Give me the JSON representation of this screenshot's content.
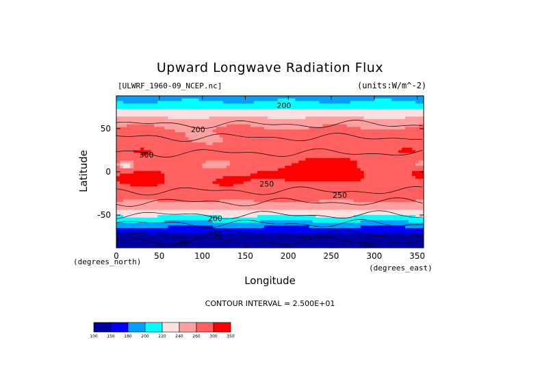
{
  "chart_data": {
    "type": "heatmap",
    "title": "Upward Longwave Radiation Flux",
    "dataset": "[ULWRF_1960-09_NCEP.nc]",
    "units": "(units:W/m^-2)",
    "xlabel": "Longitude",
    "ylabel": "Latitude",
    "x_unit_label": "(degrees_east)",
    "y_unit_label": "(degrees_north)",
    "xlim": [
      0,
      357.5
    ],
    "ylim": [
      -88,
      88
    ],
    "x_ticks": [
      "0",
      "50",
      "100",
      "150",
      "200",
      "250",
      "300",
      "350"
    ],
    "x_tick_values": [
      0,
      50,
      100,
      150,
      200,
      250,
      300,
      350
    ],
    "y_ticks": [
      "50",
      "0",
      "-50"
    ],
    "y_tick_values": [
      50,
      0,
      -50
    ],
    "contour_interval": "CONTOUR INTERVAL = 2.500E+01",
    "contour_labels": [
      {
        "text": "200",
        "x": 195,
        "y": 77
      },
      {
        "text": "200",
        "x": 95,
        "y": 49
      },
      {
        "text": "300",
        "x": 35,
        "y": 20
      },
      {
        "text": "250",
        "x": 175,
        "y": -14
      },
      {
        "text": "250",
        "x": 260,
        "y": -27
      },
      {
        "text": "200",
        "x": 115,
        "y": -54
      },
      {
        "text": "150",
        "x": 115,
        "y": -72
      },
      {
        "text": "100",
        "x": 75,
        "y": -82
      },
      {
        "text": "150",
        "x": 290,
        "y": -85
      }
    ],
    "colorbar": {
      "levels": [
        "100",
        "150",
        "180",
        "200",
        "220",
        "240",
        "260",
        "300",
        "350"
      ],
      "colors": [
        "#0000a0",
        "#0000ff",
        "#00a0ff",
        "#00ffff",
        "#ffe0e0",
        "#ffa0a0",
        "#ff6060",
        "#ff0000"
      ]
    },
    "band_colors": {
      "b1": "#0000a0",
      "b2": "#0000ff",
      "b3": "#00a0ff",
      "b4": "#00ffff",
      "b5": "#ffe0e0",
      "b6": "#ffa0a0",
      "b7": "#ff6060",
      "b8": "#ff0000"
    }
  }
}
